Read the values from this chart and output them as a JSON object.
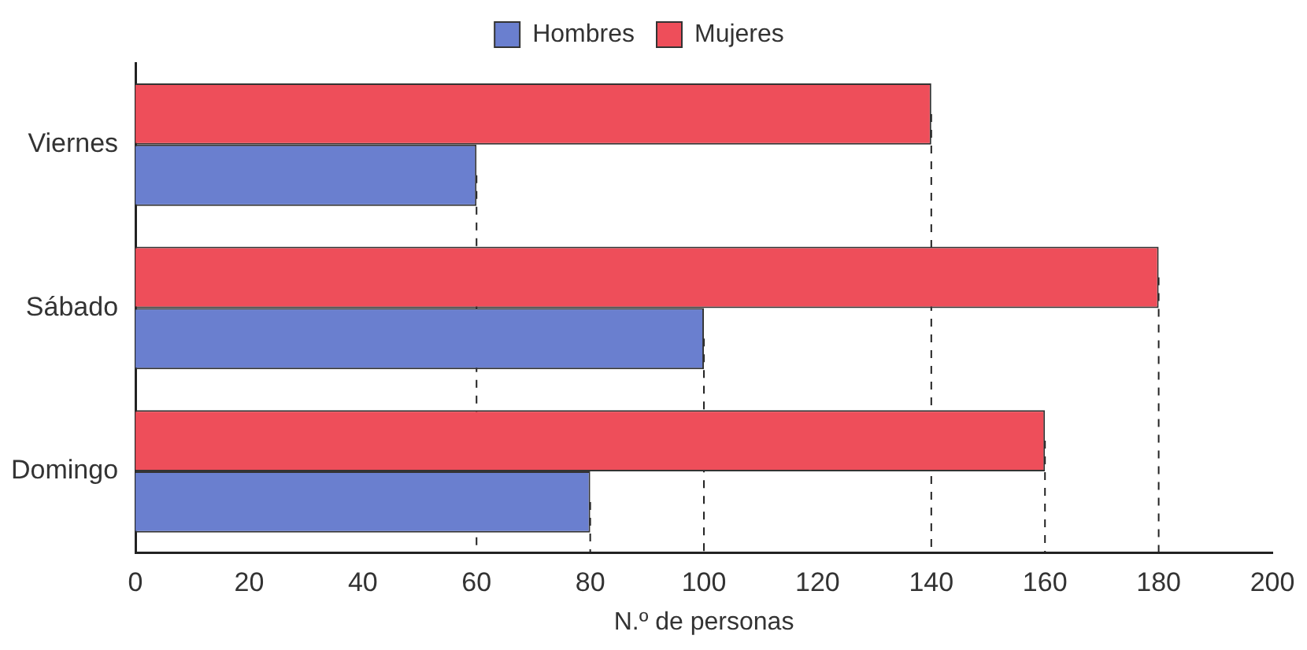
{
  "chart_data": {
    "type": "bar",
    "orientation": "horizontal",
    "xlabel": "N.º de personas",
    "categories": [
      "Viernes",
      "Sábado",
      "Domingo"
    ],
    "series": [
      {
        "name": "Mujeres",
        "color": "#ee4e5a",
        "values": [
          140,
          180,
          160
        ]
      },
      {
        "name": "Hombres",
        "color": "#6a7fcf",
        "values": [
          60,
          100,
          80
        ]
      }
    ],
    "ref_lines": [
      {
        "axis": "x",
        "value": 60,
        "line_style": "dashed"
      },
      {
        "axis": "x",
        "value": 80,
        "line_style": "dashed"
      },
      {
        "axis": "x",
        "value": 100,
        "line_style": "dashed"
      },
      {
        "axis": "x",
        "value": 140,
        "line_style": "dashed"
      },
      {
        "axis": "x",
        "value": 160,
        "line_style": "dashed"
      },
      {
        "axis": "x",
        "value": 180,
        "line_style": "dashed"
      }
    ],
    "xlim": [
      0,
      200
    ],
    "xticks": [
      0,
      20,
      40,
      60,
      80,
      100,
      120,
      140,
      160,
      180,
      200
    ],
    "grid": false,
    "legend": "top"
  }
}
